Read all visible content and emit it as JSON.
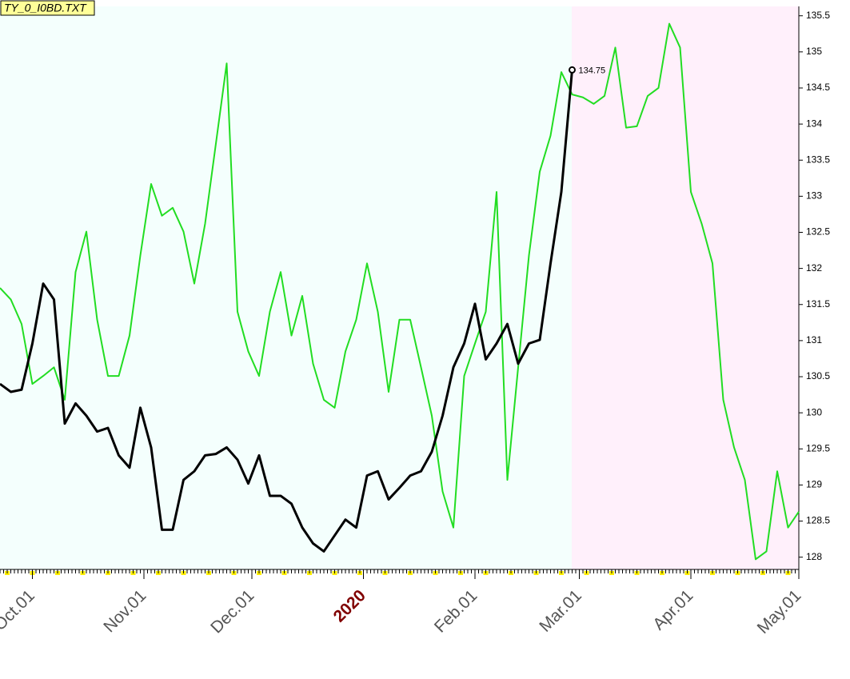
{
  "chart_data": {
    "type": "line",
    "title": "TY_0_I0BD.TXT",
    "x": [
      -9,
      -6,
      -3,
      0,
      3,
      6,
      9,
      12,
      15,
      18,
      21,
      24,
      27,
      30,
      33,
      36,
      39,
      42,
      45,
      48,
      51,
      54,
      57,
      60,
      63,
      66,
      69,
      72,
      75,
      78,
      81,
      84,
      87,
      90,
      93,
      96,
      99,
      102,
      105,
      108,
      111,
      114,
      117,
      120,
      123,
      126,
      129,
      132,
      135,
      138,
      141,
      144,
      147,
      150,
      153,
      156,
      159,
      162,
      165,
      168,
      171,
      174,
      177,
      180,
      183,
      186,
      189,
      192,
      195,
      198,
      201,
      204,
      207,
      210,
      213
    ],
    "series": [
      {
        "color": "#000000",
        "values": [
          130.4,
          130.29,
          130.32,
          130.96,
          131.79,
          131.57,
          129.85,
          130.13,
          129.96,
          129.74,
          129.79,
          129.41,
          129.24,
          130.07,
          129.52,
          128.38,
          128.38,
          129.07,
          129.19,
          129.41,
          129.43,
          129.52,
          129.35,
          129.02,
          129.41,
          128.85,
          128.85,
          128.74,
          128.41,
          128.19,
          128.08,
          128.3,
          128.52,
          128.41,
          129.13,
          129.19,
          128.8,
          128.96,
          129.13,
          129.19,
          129.46,
          129.96,
          130.63,
          130.96,
          131.51,
          130.74,
          130.96,
          131.23,
          130.68,
          130.96,
          131.01,
          132.07,
          133.06,
          134.75,
          null,
          null,
          null,
          null,
          null,
          null,
          null,
          null,
          null,
          null,
          null,
          null,
          null,
          null,
          null,
          null,
          null,
          null,
          null,
          null,
          null
        ]
      },
      {
        "color": "#22dd22",
        "values": [
          131.73,
          131.57,
          131.23,
          130.4,
          130.51,
          130.63,
          130.18,
          131.95,
          132.51,
          131.29,
          130.51,
          130.51,
          131.07,
          132.18,
          133.17,
          132.73,
          132.84,
          132.51,
          131.79,
          132.62,
          133.73,
          134.84,
          131.4,
          130.85,
          130.51,
          131.4,
          131.95,
          131.07,
          131.62,
          130.68,
          130.18,
          130.07,
          130.85,
          131.29,
          132.07,
          131.4,
          130.29,
          131.29,
          131.29,
          130.63,
          129.96,
          128.91,
          128.41,
          130.51,
          130.96,
          131.4,
          133.06,
          129.07,
          130.63,
          132.18,
          133.34,
          133.84,
          134.72,
          134.41,
          134.37,
          134.28,
          134.39,
          135.06,
          133.95,
          133.97,
          134.39,
          134.5,
          135.39,
          135.06,
          133.06,
          132.62,
          132.07,
          130.18,
          129.52,
          129.07,
          127.97,
          128.08,
          129.19,
          128.41,
          128.63
        ]
      }
    ],
    "annotation": "134.75",
    "xlim": [
      -9,
      213
    ],
    "xticks": [
      {
        "value": 0,
        "label": "Oct.01"
      },
      {
        "value": 31,
        "label": "Nov.01"
      },
      {
        "value": 61,
        "label": "Dec.01"
      },
      {
        "value": 92,
        "label": "2020"
      },
      {
        "value": 123,
        "label": "Feb.01"
      },
      {
        "value": 152,
        "label": "Mar.01"
      },
      {
        "value": 183,
        "label": "Apr.01"
      },
      {
        "value": 213,
        "label": "May.01"
      }
    ],
    "ylim": [
      127.83,
      135.63
    ],
    "yticks": [
      128,
      128.5,
      129,
      129.5,
      130,
      130.5,
      131,
      131.5,
      132,
      132.5,
      133,
      133.5,
      134,
      134.5,
      135,
      135.5
    ]
  }
}
